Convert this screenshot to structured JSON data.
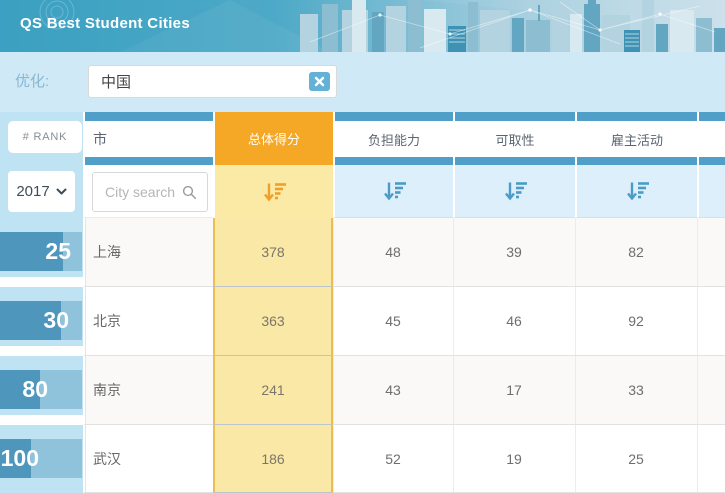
{
  "banner": {
    "title": "QS Best Student Cities"
  },
  "filter": {
    "label": "优化:",
    "value": "中国"
  },
  "table": {
    "rank_header": "# RANK",
    "year_selected": "2017",
    "city_search_placeholder": "City search",
    "columns": [
      {
        "id": "city",
        "label": "市"
      },
      {
        "id": "overall",
        "label": "总体得分"
      },
      {
        "id": "affordability",
        "label": "负担能力"
      },
      {
        "id": "desirability",
        "label": "可取性"
      },
      {
        "id": "employer_activity",
        "label": "雇主活动"
      }
    ],
    "rows": [
      {
        "rank": "25",
        "city": "上海",
        "overall": 378,
        "affordability": 48,
        "desirability": 39,
        "employer_activity": 82
      },
      {
        "rank": "30",
        "city": "北京",
        "overall": 363,
        "affordability": 45,
        "desirability": 46,
        "employer_activity": 92
      },
      {
        "rank": "80",
        "city": "南京",
        "overall": 241,
        "affordability": 43,
        "desirability": 17,
        "employer_activity": 33
      },
      {
        "rank": "100",
        "city": "武汉",
        "overall": 186,
        "affordability": 52,
        "desirability": 19,
        "employer_activity": 25
      }
    ]
  },
  "colors": {
    "banner_teal": "#45a6c4",
    "header_blue": "#4f9fc8",
    "accent_orange": "#f5a726",
    "highlight_yellow": "#fae9a6",
    "light_blue": "#cfe9f6",
    "bar_fill": "#4e96bb",
    "bar_track": "#8fc3dc"
  }
}
